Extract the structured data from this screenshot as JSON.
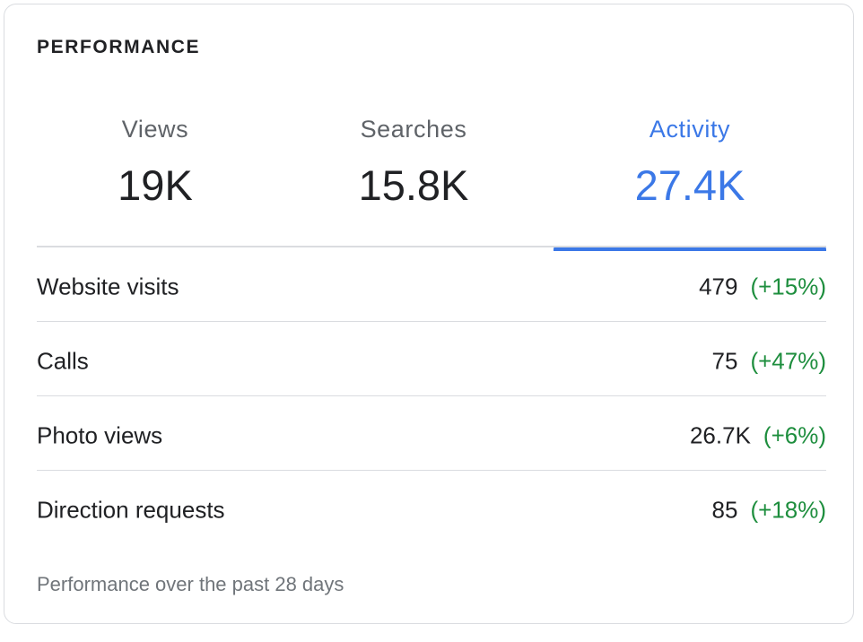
{
  "card": {
    "title": "PERFORMANCE",
    "footnote": "Performance over the past 28 days"
  },
  "tabs": [
    {
      "label": "Views",
      "value": "19K",
      "active": false
    },
    {
      "label": "Searches",
      "value": "15.8K",
      "active": false
    },
    {
      "label": "Activity",
      "value": "27.4K",
      "active": true
    }
  ],
  "metrics": [
    {
      "label": "Website visits",
      "value": "479",
      "change": "(+15%)"
    },
    {
      "label": "Calls",
      "value": "75",
      "change": "(+47%)"
    },
    {
      "label": "Photo views",
      "value": "26.7K",
      "change": "(+6%)"
    },
    {
      "label": "Direction requests",
      "value": "85",
      "change": "(+18%)"
    }
  ],
  "colors": {
    "accent": "#3b78e7",
    "positive_change": "#1e8e3e",
    "divider": "#dadce0",
    "muted_text": "#70757a"
  }
}
